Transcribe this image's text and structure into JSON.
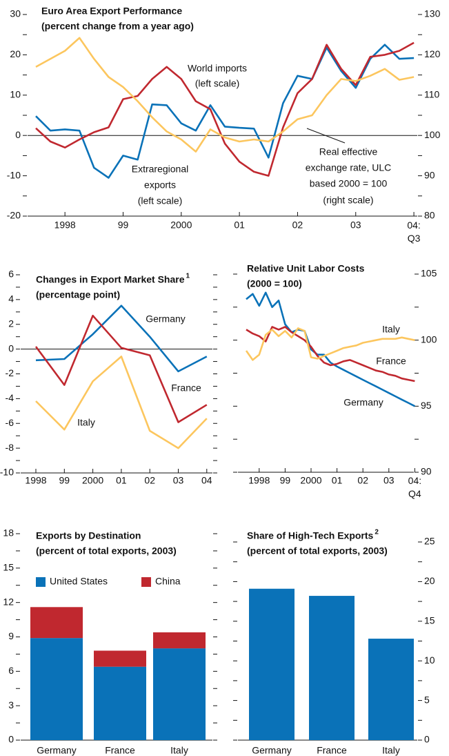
{
  "chart_data": [
    {
      "type": "line",
      "title": "Euro Area Export Performance",
      "subtitle": "(percent change from a year ago)",
      "categories": [
        null,
        null,
        "1998",
        null,
        null,
        null,
        "99",
        null,
        null,
        null,
        "2000",
        null,
        null,
        null,
        "01",
        null,
        null,
        null,
        "02",
        null,
        null,
        null,
        "03",
        null,
        null,
        null,
        "04:\nQ3"
      ],
      "ylim": [
        -20,
        30
      ],
      "yticks": [
        -20,
        -10,
        0,
        10,
        20,
        30
      ],
      "yminor": [
        -15,
        -5,
        5,
        15,
        25
      ],
      "y2lim": [
        80,
        130
      ],
      "y2ticks": [
        80,
        90,
        100,
        110,
        120,
        130
      ],
      "y2minor": [
        85,
        95,
        105,
        115,
        125
      ],
      "zero_line": true,
      "series": [
        {
          "labels": [
            "Extraregional",
            "exports",
            "(left scale)"
          ],
          "color": "#0a72b8",
          "values": [
            4.8,
            1.2,
            1.5,
            1.2,
            -8,
            -10.5,
            -5,
            -6,
            7.7,
            7.5,
            3,
            1.2,
            7.5,
            2.2,
            1.9,
            1.7,
            -5.5,
            8,
            14.8,
            14,
            21.8,
            16,
            11.8,
            19,
            22.5,
            19,
            19.2
          ]
        },
        {
          "labels": [
            "World imports",
            "(left scale)"
          ],
          "color": "#c0282f",
          "values": [
            1.8,
            -1.5,
            -3,
            -1,
            0.8,
            2,
            9,
            9.8,
            14,
            17,
            14,
            8.5,
            6.5,
            -2,
            -6.5,
            -9,
            -10,
            2,
            10.5,
            14,
            22.5,
            16.5,
            12.5,
            19.5,
            20,
            21,
            23
          ]
        },
        {
          "labels": [
            "Real effective",
            "exchange rate, ULC",
            "based 2000 = 100",
            "(right scale)"
          ],
          "color": "#fcc65e",
          "axis": "y2",
          "values": [
            117,
            119,
            121,
            124.2,
            119,
            114.5,
            112,
            108.5,
            104.5,
            101,
            99,
            96,
            101.5,
            99.5,
            98.5,
            99,
            98.5,
            101,
            104,
            105,
            110,
            114,
            113.5,
            114.8,
            116.5,
            113.8,
            114.5
          ]
        }
      ]
    },
    {
      "type": "line",
      "title": "Changes in Export Market Share",
      "footnote": "1",
      "subtitle": "(percentage point)",
      "categories": [
        "1998",
        "99",
        "2000",
        "01",
        "02",
        "03",
        "04"
      ],
      "ylim": [
        -10,
        6
      ],
      "yticks": [
        -10,
        -8,
        -6,
        -4,
        -2,
        0,
        2,
        4,
        6
      ],
      "yminor": [
        -9,
        -7,
        -5,
        -3,
        -1,
        1,
        3,
        5
      ],
      "zero_line": true,
      "series": [
        {
          "name": "Germany",
          "color": "#0a72b8",
          "values": [
            -0.9,
            -0.8,
            1.2,
            3.5,
            1.0,
            -1.8,
            -0.6
          ]
        },
        {
          "name": "France",
          "color": "#c0282f",
          "values": [
            0.2,
            -2.9,
            2.7,
            0.1,
            -0.5,
            -5.9,
            -4.5
          ]
        },
        {
          "name": "Italy",
          "color": "#fcc65e",
          "values": [
            -4.2,
            -6.5,
            -2.6,
            -0.6,
            -6.6,
            -8.0,
            -5.6
          ]
        }
      ]
    },
    {
      "type": "line",
      "title": "Relative Unit Labor Costs",
      "subtitle": "(2000 = 100)",
      "yaxis_position": "right",
      "categories": [
        null,
        null,
        "1998",
        null,
        null,
        null,
        "99",
        null,
        null,
        null,
        "2000",
        null,
        null,
        null,
        "01",
        null,
        null,
        null,
        "02",
        null,
        null,
        null,
        "03",
        null,
        null,
        null,
        "04:\nQ4"
      ],
      "ylim": [
        90,
        105
      ],
      "yticks": [
        90,
        95,
        100,
        105
      ],
      "yminor": [
        92.5,
        97.5,
        102.5
      ],
      "series": [
        {
          "name": "Germany",
          "color": "#0a72b8",
          "values": [
            103.1,
            103.5,
            102.6,
            103.6,
            102.5,
            103.0,
            101.2,
            100.6,
            100.8,
            100.7,
            99.3,
            98.9,
            98.9,
            98.3,
            98.0,
            97.75,
            97.5,
            97.25,
            97.0,
            96.75,
            96.5,
            96.25,
            96.0,
            95.75,
            95.5,
            95.25,
            95.0
          ]
        },
        {
          "name": "France",
          "color": "#c0282f",
          "values": [
            100.8,
            100.5,
            100.3,
            99.9,
            101.0,
            100.8,
            101.0,
            100.6,
            100.3,
            100.0,
            99.5,
            98.8,
            98.3,
            98.1,
            98.2,
            98.4,
            98.5,
            98.3,
            98.1,
            97.9,
            97.7,
            97.6,
            97.4,
            97.3,
            97.1,
            97.0,
            96.9
          ]
        },
        {
          "name": "Italy",
          "color": "#fcc65e",
          "values": [
            99.2,
            98.5,
            98.9,
            100.4,
            100.8,
            100.3,
            100.7,
            100.2,
            100.9,
            100.7,
            98.7,
            98.6,
            98.8,
            99.0,
            99.2,
            99.4,
            99.5,
            99.6,
            99.8,
            99.9,
            100.0,
            100.1,
            100.1,
            100.1,
            100.2,
            100.1,
            100.0
          ]
        }
      ]
    },
    {
      "type": "stacked_bar",
      "title": "Exports by Destination",
      "subtitle": "(percent of total exports, 2003)",
      "categories": [
        "Germany",
        "France",
        "Italy"
      ],
      "ylim": [
        0,
        18
      ],
      "yticks": [
        0,
        3,
        6,
        9,
        12,
        15,
        18
      ],
      "yminor": [
        1.5,
        4.5,
        7.5,
        10.5,
        13.5,
        16.5
      ],
      "legend": "top-left",
      "series": [
        {
          "name": "United States",
          "color": "#0a72b8",
          "values": [
            8.9,
            6.4,
            8.0
          ]
        },
        {
          "name": "China",
          "color": "#c0282f",
          "values": [
            2.7,
            1.4,
            1.4
          ]
        }
      ]
    },
    {
      "type": "bar",
      "title": "Share of High-Tech Exports",
      "footnote": "2",
      "subtitle": "(percent of total exports, 2003)",
      "yaxis_position": "right",
      "categories": [
        "Germany",
        "France",
        "Italy"
      ],
      "color": "#0a72b8",
      "values": [
        19.1,
        18.2,
        12.8
      ],
      "ylim": [
        0,
        25
      ],
      "yticks": [
        0,
        5,
        10,
        15,
        20,
        25
      ],
      "yminor": [
        2.5,
        7.5,
        12.5,
        17.5,
        22.5
      ]
    }
  ]
}
